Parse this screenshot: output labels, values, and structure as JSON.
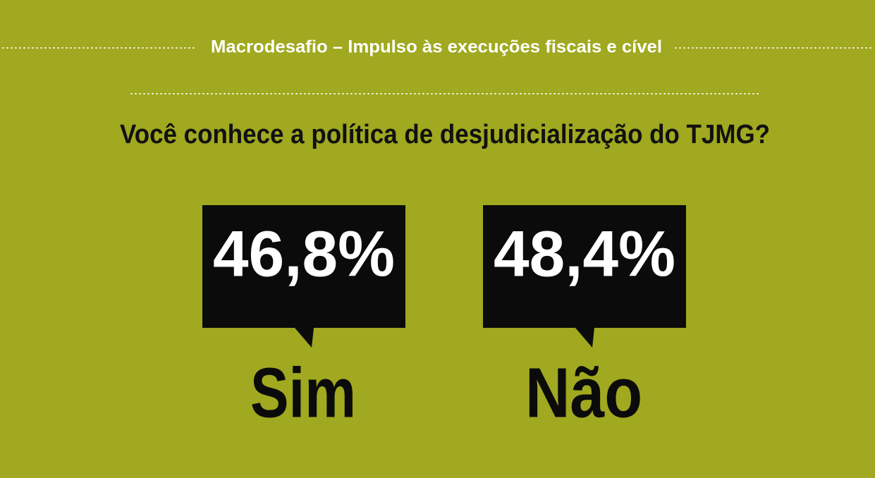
{
  "header": {
    "title": "Macrodesafio – Impulso às execuções fiscais e cível"
  },
  "question": "Você conhece a política de desjudicialização do TJMG?",
  "answers": [
    {
      "percent": "46,8%",
      "label": "Sim"
    },
    {
      "percent": "48,4%",
      "label": "Não"
    }
  ]
}
